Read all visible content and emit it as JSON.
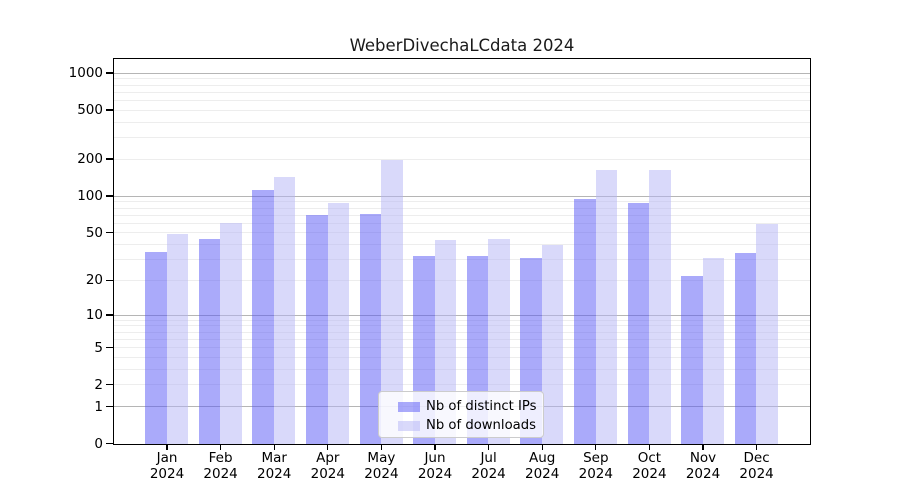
{
  "title": "WeberDivechaLCdata 2024",
  "chart_data": {
    "type": "bar",
    "title": "WeberDivechaLCdata 2024",
    "categories": [
      "Jan",
      "Feb",
      "Mar",
      "Apr",
      "May",
      "Jun",
      "Jul",
      "Aug",
      "Sep",
      "Oct",
      "Nov",
      "Dec"
    ],
    "x_tick_year": "2024",
    "series": [
      {
        "name": "Nb of distinct IPs",
        "color": "#5555f5",
        "alpha": 0.5,
        "values": [
          35,
          45,
          113,
          70,
          72,
          32,
          32,
          31,
          96,
          89,
          22,
          34
        ]
      },
      {
        "name": "Nb of downloads",
        "color": "#b4b4f5",
        "alpha": 0.5,
        "values": [
          49,
          60,
          145,
          88,
          197,
          44,
          45,
          40,
          165,
          165,
          31,
          59
        ]
      }
    ],
    "yticks": [
      0,
      1,
      2,
      5,
      10,
      20,
      50,
      100,
      200,
      500,
      1000
    ],
    "yscale": "log10(1+y)",
    "ylim": [
      0,
      1290
    ],
    "grid": true,
    "legend": {
      "position": "lower center",
      "entries": [
        "Nb of distinct IPs",
        "Nb of downloads"
      ]
    },
    "xlabel": "",
    "ylabel": ""
  },
  "colors": {
    "major_grid": "#b5b5b5",
    "minor_grid": "#ededed",
    "spine": "#000000",
    "legend_border": "#cccccc",
    "background": "#ffffff"
  }
}
